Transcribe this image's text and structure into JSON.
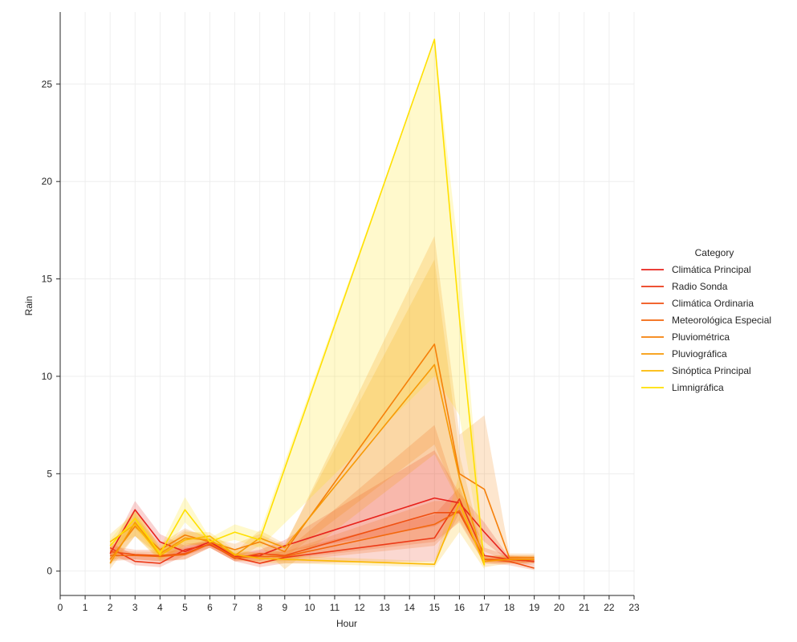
{
  "chart_data": {
    "type": "line",
    "xlabel": "Hour",
    "ylabel": "Rain",
    "xlim": [
      0,
      23
    ],
    "ylim": [
      -1.25,
      28.7
    ],
    "xticks": [
      0,
      1,
      2,
      3,
      4,
      5,
      6,
      7,
      8,
      9,
      10,
      11,
      12,
      13,
      14,
      15,
      16,
      17,
      18,
      19,
      20,
      21,
      22,
      23
    ],
    "yticks": [
      0,
      5,
      10,
      15,
      20,
      25
    ],
    "grid": true,
    "legend": {
      "title": "Category",
      "placement": "right"
    },
    "series": [
      {
        "name": "Climática Principal",
        "color": "#e8231c",
        "x": [
          2,
          3,
          4,
          5,
          6,
          7,
          8,
          9,
          15,
          16,
          17,
          18,
          19
        ],
        "y": [
          0.9,
          3.15,
          1.5,
          1.0,
          1.5,
          0.75,
          0.8,
          1.3,
          3.75,
          3.5,
          2.0,
          0.6,
          0.5
        ],
        "lower": [
          0.7,
          2.2,
          1.0,
          0.8,
          1.35,
          0.6,
          0.5,
          1.0,
          2.3,
          3.0,
          1.5,
          0.5,
          0.4
        ],
        "upper": [
          1.1,
          3.6,
          1.9,
          1.3,
          1.65,
          0.9,
          1.1,
          1.6,
          6.2,
          4.0,
          2.5,
          0.7,
          0.6
        ]
      },
      {
        "name": "Radio Sonda",
        "color": "#ec3a17",
        "x": [
          2,
          3,
          4,
          5,
          6,
          7,
          8,
          9,
          15,
          16,
          17,
          18,
          19
        ],
        "y": [
          1.2,
          0.5,
          0.4,
          1.1,
          1.35,
          0.7,
          0.4,
          0.7,
          1.7,
          3.7,
          0.8,
          0.6,
          0.5
        ],
        "lower": [
          0.9,
          0.3,
          0.2,
          0.8,
          1.2,
          0.5,
          0.2,
          0.4,
          0.5,
          3.0,
          0.5,
          0.4,
          0.3
        ],
        "upper": [
          1.5,
          0.8,
          0.7,
          1.4,
          1.5,
          0.9,
          0.7,
          1.0,
          2.9,
          4.3,
          1.2,
          0.8,
          0.7
        ]
      },
      {
        "name": "Climática Ordinaria",
        "color": "#f05012",
        "x": [
          2,
          3,
          4,
          5,
          6,
          7,
          8,
          9,
          15,
          16,
          17,
          18,
          19
        ],
        "y": [
          1.0,
          0.85,
          0.8,
          0.9,
          1.4,
          0.65,
          0.9,
          0.8,
          3.0,
          3.0,
          0.6,
          0.5,
          0.15
        ],
        "lower": [
          0.6,
          0.6,
          0.5,
          0.6,
          1.2,
          0.5,
          0.7,
          0.6,
          1.5,
          2.5,
          0.4,
          0.3,
          0.05
        ],
        "upper": [
          1.3,
          1.1,
          1.1,
          1.2,
          1.6,
          0.8,
          1.1,
          1.0,
          7.5,
          3.5,
          0.8,
          0.7,
          0.3
        ]
      },
      {
        "name": "Meteorológica Especial",
        "color": "#f3670d",
        "x": [
          2,
          3,
          4,
          5,
          6,
          7,
          8,
          9,
          15,
          16,
          17,
          18,
          19
        ],
        "y": [
          0.8,
          0.8,
          0.75,
          0.85,
          1.4,
          0.7,
          0.75,
          0.75,
          2.4,
          3.1,
          0.6,
          0.6,
          0.6
        ],
        "lower": [
          0.5,
          0.6,
          0.5,
          0.6,
          1.2,
          0.5,
          0.5,
          0.5,
          1.3,
          2.6,
          0.4,
          0.4,
          0.4
        ],
        "upper": [
          1.1,
          1.0,
          1.0,
          1.1,
          1.6,
          0.9,
          1.0,
          1.0,
          3.6,
          3.6,
          0.8,
          0.8,
          0.8
        ]
      },
      {
        "name": "Pluviométrica",
        "color": "#f5800a",
        "x": [
          2,
          3,
          4,
          5,
          6,
          7,
          8,
          9,
          15,
          16,
          17,
          18,
          19
        ],
        "y": [
          0.6,
          2.3,
          1.1,
          1.85,
          1.5,
          1.1,
          1.5,
          1.0,
          11.65,
          5.0,
          4.2,
          0.7,
          0.7
        ],
        "lower": [
          0.3,
          1.8,
          0.8,
          1.4,
          1.3,
          0.8,
          1.1,
          0.7,
          6.5,
          3.5,
          1.0,
          0.5,
          0.5
        ],
        "upper": [
          0.9,
          2.8,
          1.4,
          2.2,
          1.7,
          1.4,
          1.9,
          1.3,
          17.2,
          7.0,
          8.0,
          0.9,
          0.9
        ]
      },
      {
        "name": "Pluviográfica",
        "color": "#f79906",
        "x": [
          2,
          3,
          4,
          5,
          6,
          7,
          8,
          9,
          15,
          16,
          17,
          18,
          19
        ],
        "y": [
          0.4,
          2.5,
          0.9,
          1.7,
          1.6,
          0.8,
          1.7,
          1.2,
          10.6,
          4.8,
          0.5,
          0.6,
          0.6
        ],
        "lower": [
          0.1,
          1.8,
          0.6,
          1.3,
          1.4,
          0.6,
          1.3,
          0.1,
          6.0,
          3.5,
          0.2,
          0.4,
          0.4
        ],
        "upper": [
          0.7,
          3.2,
          1.2,
          2.1,
          1.8,
          1.0,
          2.1,
          1.4,
          16.0,
          6.0,
          0.8,
          0.8,
          0.8
        ]
      },
      {
        "name": "Sinóptica Principal",
        "color": "#fbb902",
        "x": [
          2,
          3,
          4,
          5,
          6,
          7,
          8,
          9,
          15,
          16,
          17
        ],
        "y": [
          1.5,
          2.4,
          0.8,
          1.6,
          1.8,
          0.85,
          0.65,
          0.6,
          0.35,
          3.5,
          0.3
        ],
        "lower": [
          1.1,
          1.8,
          0.5,
          1.2,
          1.6,
          0.6,
          0.4,
          0.4,
          0.2,
          2.0,
          0.1
        ],
        "upper": [
          1.9,
          3.0,
          1.1,
          2.0,
          2.0,
          1.1,
          0.9,
          0.8,
          0.5,
          5.0,
          0.5
        ]
      },
      {
        "name": "Limnigráfica",
        "color": "#ffe000",
        "x": [
          2,
          3,
          4,
          5,
          6,
          7,
          8,
          15,
          16,
          17
        ],
        "y": [
          1.3,
          2.7,
          0.9,
          3.15,
          1.5,
          2.0,
          1.6,
          27.3,
          13.0,
          0.3
        ],
        "lower": [
          1.0,
          2.2,
          0.6,
          2.5,
          1.3,
          1.6,
          1.2,
          10.0,
          8.0,
          0.1
        ],
        "upper": [
          1.6,
          3.2,
          1.2,
          3.8,
          1.7,
          2.4,
          2.0,
          27.3,
          16.0,
          0.5
        ]
      }
    ]
  }
}
